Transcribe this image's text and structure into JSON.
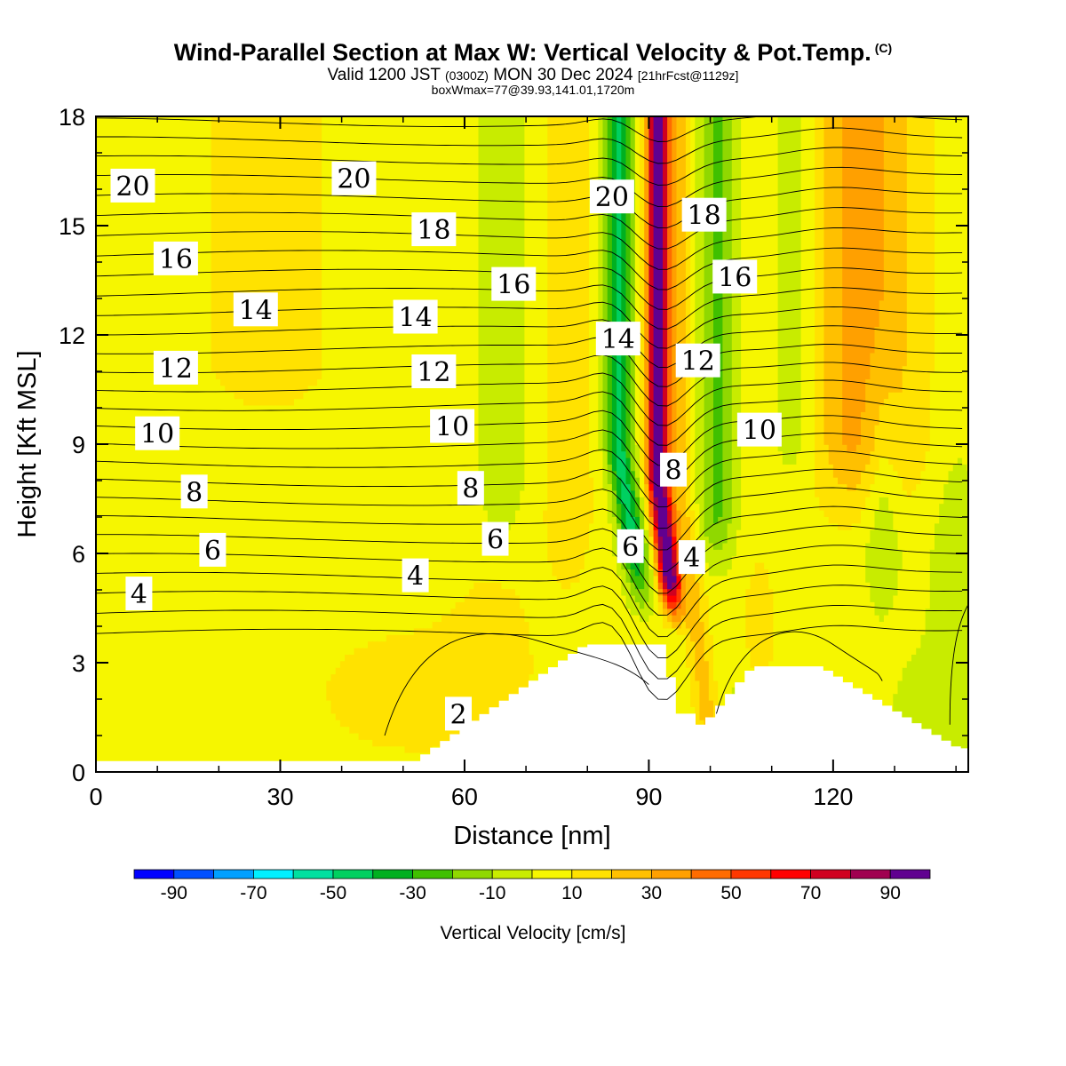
{
  "header": {
    "title": "Wind-Parallel Section at Max W: Vertical Velocity & Pot.Temp.",
    "copyright": "(C)",
    "valid_prefix": "Valid 1200 JST",
    "valid_utc": "(0300Z)",
    "valid_date": "MON 30 Dec 2024",
    "forecast": "[21hrFcst@1129z]",
    "box_info": "boxWmax=77@39.93,141.01,1720m"
  },
  "chart_data": {
    "type": "heatmap",
    "xlabel": "Distance [nm]",
    "ylabel": "Height [Kft MSL]",
    "xlim": [
      0,
      142
    ],
    "ylim": [
      0,
      18
    ],
    "x_ticks": [
      "0",
      "30",
      "60",
      "90",
      "120"
    ],
    "y_ticks": [
      "0",
      "3",
      "6",
      "9",
      "12",
      "15",
      "18"
    ],
    "colorbar": {
      "title": "Vertical Velocity [cm/s]",
      "bounds": [
        -100,
        100
      ],
      "levels": [
        -100,
        -90,
        -80,
        -70,
        -60,
        -50,
        -40,
        -30,
        -20,
        -10,
        0,
        10,
        20,
        30,
        40,
        50,
        60,
        70,
        80,
        90,
        100
      ],
      "tick_labels": [
        "-90",
        "-70",
        "-50",
        "-30",
        "-10",
        "10",
        "30",
        "50",
        "70",
        "90"
      ],
      "colors": [
        "#0000ff",
        "#0050ff",
        "#00a0ff",
        "#00f0ff",
        "#00e0a0",
        "#00d060",
        "#00b020",
        "#40c000",
        "#90d800",
        "#c8ec00",
        "#f6f600",
        "#ffe200",
        "#ffc000",
        "#ffa000",
        "#ff6c00",
        "#ff3800",
        "#ff0000",
        "#d00020",
        "#a00050",
        "#600090"
      ]
    },
    "theta_contour_labels": [
      {
        "text": "20",
        "x": 6,
        "y": 16.1
      },
      {
        "text": "20",
        "x": 42,
        "y": 16.3
      },
      {
        "text": "20",
        "x": 84,
        "y": 15.8
      },
      {
        "text": "18",
        "x": 55,
        "y": 14.9
      },
      {
        "text": "18",
        "x": 99,
        "y": 15.3
      },
      {
        "text": "16",
        "x": 13,
        "y": 14.1
      },
      {
        "text": "16",
        "x": 68,
        "y": 13.4
      },
      {
        "text": "16",
        "x": 104,
        "y": 13.6
      },
      {
        "text": "14",
        "x": 26,
        "y": 12.7
      },
      {
        "text": "14",
        "x": 52,
        "y": 12.5
      },
      {
        "text": "14",
        "x": 85,
        "y": 11.9
      },
      {
        "text": "12",
        "x": 13,
        "y": 11.1
      },
      {
        "text": "12",
        "x": 55,
        "y": 11.0
      },
      {
        "text": "12",
        "x": 98,
        "y": 11.3
      },
      {
        "text": "10",
        "x": 10,
        "y": 9.3
      },
      {
        "text": "10",
        "x": 58,
        "y": 9.5
      },
      {
        "text": "10",
        "x": 108,
        "y": 9.4
      },
      {
        "text": "8",
        "x": 16,
        "y": 7.7
      },
      {
        "text": "8",
        "x": 61,
        "y": 7.8
      },
      {
        "text": "8",
        "x": 94,
        "y": 8.3
      },
      {
        "text": "6",
        "x": 19,
        "y": 6.1
      },
      {
        "text": "6",
        "x": 65,
        "y": 6.4
      },
      {
        "text": "6",
        "x": 87,
        "y": 6.2
      },
      {
        "text": "4",
        "x": 7,
        "y": 4.9
      },
      {
        "text": "4",
        "x": 52,
        "y": 5.4
      },
      {
        "text": "4",
        "x": 97,
        "y": 5.9
      },
      {
        "text": "2",
        "x": 59,
        "y": 1.6
      }
    ]
  }
}
